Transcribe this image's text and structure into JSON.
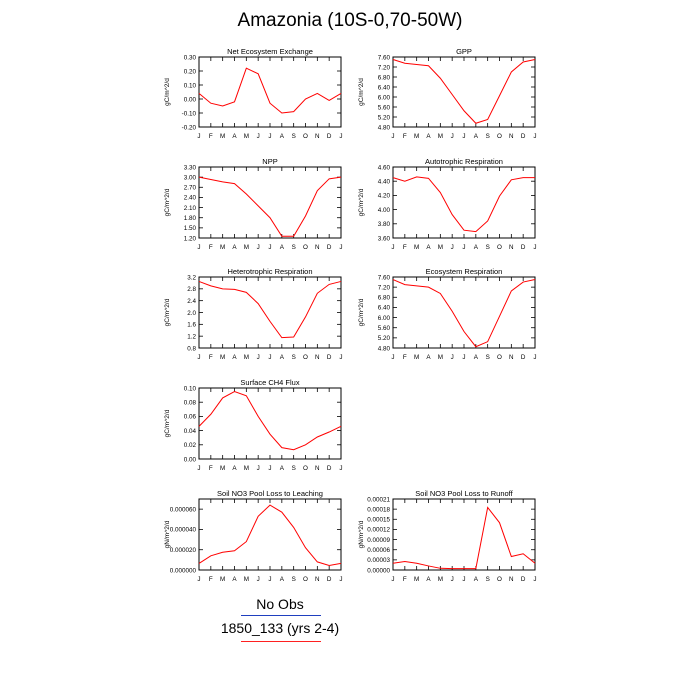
{
  "title": "Amazonia (10S-0,70-50W)",
  "month_labels": [
    "J",
    "F",
    "M",
    "A",
    "M",
    "J",
    "J",
    "A",
    "S",
    "O",
    "N",
    "D",
    "J"
  ],
  "legend": [
    {
      "label": "No Obs",
      "color": "#1f3fbf"
    },
    {
      "label": "1850_133 (yrs 2-4)",
      "color": "#ff2020"
    }
  ],
  "series_color": "#ff0000",
  "chart_data": [
    {
      "type": "line",
      "title": "Net Ecosystem Exchange",
      "ylabel": "gC/m^2/d",
      "ylim": [
        -0.2,
        0.3
      ],
      "yticks": [
        "-0.20",
        "-0.10",
        "0.00",
        "0.10",
        "0.20",
        "0.30"
      ],
      "x": [
        "J",
        "F",
        "M",
        "A",
        "M",
        "J",
        "J",
        "A",
        "S",
        "O",
        "N",
        "D",
        "J"
      ],
      "values": [
        0.04,
        -0.03,
        -0.05,
        -0.02,
        0.22,
        0.18,
        -0.03,
        -0.1,
        -0.09,
        0.0,
        0.04,
        -0.01,
        0.04
      ]
    },
    {
      "type": "line",
      "title": "GPP",
      "ylabel": "gC/m^2/d",
      "ylim": [
        4.8,
        7.6
      ],
      "yticks": [
        "4.80",
        "5.20",
        "5.60",
        "6.00",
        "6.40",
        "6.80",
        "7.20",
        "7.60"
      ],
      "x": [
        "J",
        "F",
        "M",
        "A",
        "M",
        "J",
        "J",
        "A",
        "S",
        "O",
        "N",
        "D",
        "J"
      ],
      "values": [
        7.5,
        7.35,
        7.3,
        7.25,
        6.75,
        6.1,
        5.45,
        4.95,
        5.1,
        6.05,
        7.0,
        7.4,
        7.5
      ]
    },
    {
      "type": "line",
      "title": "NPP",
      "ylabel": "gC/m^2/d",
      "ylim": [
        1.2,
        3.3
      ],
      "yticks": [
        "1.20",
        "1.50",
        "1.80",
        "2.10",
        "2.40",
        "2.70",
        "3.00",
        "3.30"
      ],
      "x": [
        "J",
        "F",
        "M",
        "A",
        "M",
        "J",
        "J",
        "A",
        "S",
        "O",
        "N",
        "D",
        "J"
      ],
      "values": [
        3.0,
        2.93,
        2.86,
        2.81,
        2.5,
        2.15,
        1.8,
        1.25,
        1.25,
        1.85,
        2.6,
        2.95,
        3.0
      ]
    },
    {
      "type": "line",
      "title": "Autotrophic Respiration",
      "ylabel": "gC/m^2/d",
      "ylim": [
        3.6,
        4.6
      ],
      "yticks": [
        "3.60",
        "3.80",
        "4.00",
        "4.20",
        "4.40",
        "4.60"
      ],
      "x": [
        "J",
        "F",
        "M",
        "A",
        "M",
        "J",
        "J",
        "A",
        "S",
        "O",
        "N",
        "D",
        "J"
      ],
      "values": [
        4.45,
        4.4,
        4.46,
        4.44,
        4.24,
        3.93,
        3.71,
        3.69,
        3.84,
        4.19,
        4.42,
        4.45,
        4.45
      ]
    },
    {
      "type": "line",
      "title": "Heterotrophic Respiration",
      "ylabel": "gC/m^2/d",
      "ylim": [
        0.8,
        3.2
      ],
      "yticks": [
        "0.8",
        "1.2",
        "1.6",
        "2.0",
        "2.4",
        "2.8",
        "3.2"
      ],
      "x": [
        "J",
        "F",
        "M",
        "A",
        "M",
        "J",
        "J",
        "A",
        "S",
        "O",
        "N",
        "D",
        "J"
      ],
      "values": [
        3.05,
        2.9,
        2.8,
        2.78,
        2.68,
        2.3,
        1.7,
        1.15,
        1.17,
        1.85,
        2.65,
        2.95,
        3.05
      ]
    },
    {
      "type": "line",
      "title": "Ecosystem Respiration",
      "ylabel": "gC/m^2/d",
      "ylim": [
        4.8,
        7.6
      ],
      "yticks": [
        "4.80",
        "5.20",
        "5.60",
        "6.00",
        "6.40",
        "6.80",
        "7.20",
        "7.60"
      ],
      "x": [
        "J",
        "F",
        "M",
        "A",
        "M",
        "J",
        "J",
        "A",
        "S",
        "O",
        "N",
        "D",
        "J"
      ],
      "values": [
        7.5,
        7.3,
        7.25,
        7.2,
        6.95,
        6.25,
        5.45,
        4.85,
        5.05,
        6.05,
        7.05,
        7.4,
        7.5
      ]
    },
    {
      "type": "line",
      "title": "Surface CH4 Flux",
      "ylabel": "gC/m^2/d",
      "ylim": [
        0.0,
        0.1
      ],
      "yticks": [
        "0.00",
        "0.02",
        "0.04",
        "0.06",
        "0.08",
        "0.10"
      ],
      "x": [
        "J",
        "F",
        "M",
        "A",
        "M",
        "J",
        "J",
        "A",
        "S",
        "O",
        "N",
        "D",
        "J"
      ],
      "values": [
        0.046,
        0.063,
        0.086,
        0.095,
        0.089,
        0.06,
        0.035,
        0.016,
        0.013,
        0.02,
        0.031,
        0.038,
        0.046
      ]
    },
    null,
    {
      "type": "line",
      "title": "Soil NO3 Pool Loss to Leaching",
      "ylabel": "gN/m^2/d",
      "ylim": [
        0.0,
        7e-05
      ],
      "yticks": [
        "0.000000",
        "0.000020",
        "0.000040",
        "0.000060"
      ],
      "ytick_values": [
        0.0,
        2e-05,
        4e-05,
        6e-05
      ],
      "x": [
        "J",
        "F",
        "M",
        "A",
        "M",
        "J",
        "J",
        "A",
        "S",
        "O",
        "N",
        "D",
        "J"
      ],
      "values": [
        6.5e-06,
        1.4e-05,
        1.75e-05,
        1.9e-05,
        2.8e-05,
        5.3e-05,
        6.4e-05,
        5.7e-05,
        4.2e-05,
        2.2e-05,
        8e-06,
        4.5e-06,
        6.5e-06
      ]
    },
    {
      "type": "line",
      "title": "Soil NO3 Pool Loss to Runoff",
      "ylabel": "gN/m^2/d",
      "ylim": [
        0.0,
        0.00021
      ],
      "yticks": [
        "0.00000",
        "0.00003",
        "0.00006",
        "0.00009",
        "0.00012",
        "0.00015",
        "0.00018",
        "0.00021"
      ],
      "x": [
        "J",
        "F",
        "M",
        "A",
        "M",
        "J",
        "J",
        "A",
        "S",
        "O",
        "N",
        "D",
        "J"
      ],
      "values": [
        2e-05,
        2.5e-05,
        2e-05,
        1.2e-05,
        5e-06,
        4e-06,
        4e-06,
        4e-06,
        0.000185,
        0.00014,
        4e-05,
        4.8e-05,
        2e-05
      ]
    }
  ]
}
